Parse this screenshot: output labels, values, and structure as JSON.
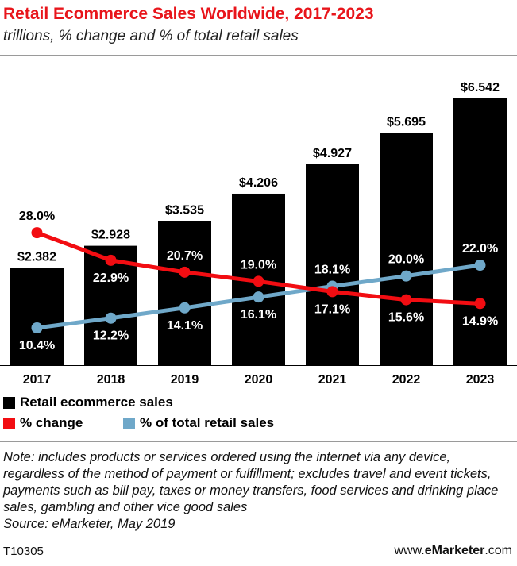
{
  "header": {
    "title": "Retail Ecommerce Sales Worldwide, 2017-2023",
    "subtitle": "trillions, % change and % of total retail sales"
  },
  "chart_data": {
    "type": "bar",
    "categories": [
      "2017",
      "2018",
      "2019",
      "2020",
      "2021",
      "2022",
      "2023"
    ],
    "series": [
      {
        "name": "Retail ecommerce sales",
        "type": "bar",
        "color": "#000000",
        "values": [
          2.382,
          2.928,
          3.535,
          4.206,
          4.927,
          5.695,
          6.542
        ],
        "labels": [
          "$2.382",
          "$2.928",
          "$3.535",
          "$4.206",
          "$4.927",
          "$5.695",
          "$6.542"
        ]
      },
      {
        "name": "% change",
        "type": "line",
        "color": "#f20d12",
        "values": [
          28.0,
          22.9,
          20.7,
          19.0,
          17.1,
          15.6,
          14.9
        ],
        "labels": [
          "28.0%",
          "22.9%",
          "20.7%",
          "19.0%",
          "17.1%",
          "15.6%",
          "14.9%"
        ]
      },
      {
        "name": "% of total retail sales",
        "type": "line",
        "color": "#6fa8c9",
        "values": [
          10.4,
          12.2,
          14.1,
          16.1,
          18.1,
          20.0,
          22.0
        ],
        "labels": [
          "10.4%",
          "12.2%",
          "14.1%",
          "16.1%",
          "18.1%",
          "20.0%",
          "22.0%"
        ]
      }
    ],
    "xlabel": "",
    "ylabel": "",
    "grid": false,
    "legend_placement": "bottom-left"
  },
  "legend": {
    "bar_label": "Retail ecommerce sales",
    "change_label": "% change",
    "share_label": "% of total retail sales"
  },
  "note": {
    "text": "Note: includes products or services ordered using the internet via any device, regardless of the method of payment or fulfillment; excludes travel and event tickets, payments such as bill pay, taxes or money transfers, food services and drinking place sales, gambling and other vice good sales",
    "source": "Source: eMarketer, May 2019"
  },
  "footer": {
    "id": "T10305",
    "brand_prefix": "www.",
    "brand_bold": "eMarketer",
    "brand_suffix": ".com"
  }
}
